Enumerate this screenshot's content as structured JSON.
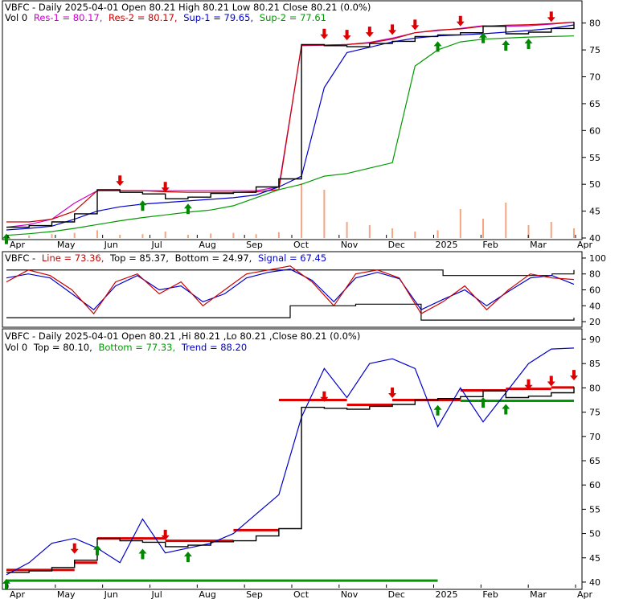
{
  "chart_data": [
    {
      "type": "line",
      "symbol": "VBFC",
      "header_line1": "VBFC - Daily 2025-04-01 Open 80.21  High 80.21  Low 80.21  Close 80.21 (0.0%)",
      "legend_vol": "Vol 0",
      "legend": [
        {
          "text": "Res-1 = 80.17,",
          "color": "#cc00cc"
        },
        {
          "text": "Res-2 = 80.17,",
          "color": "#cc0000"
        },
        {
          "text": "Sup-1 = 79.65,",
          "color": "#0000cc"
        },
        {
          "text": "Sup-2 = 77.61",
          "color": "#009900"
        }
      ],
      "y_ticks": [
        "80",
        "75",
        "70",
        "65",
        "60",
        "55",
        "50",
        "45",
        "40"
      ],
      "ylim": [
        40,
        81
      ],
      "x_ticks": [
        "Apr",
        "May",
        "Jun",
        "Jul",
        "Aug",
        "Sep",
        "Oct",
        "Nov",
        "Dec",
        "2025",
        "Feb",
        "Mar",
        "Apr"
      ],
      "x_index": [
        0,
        1,
        2,
        3,
        4,
        5,
        6,
        7,
        8,
        9,
        10,
        11,
        12,
        13,
        14,
        15,
        16,
        17,
        18,
        19,
        20,
        21,
        22,
        23,
        24,
        25
      ],
      "price": [
        42.0,
        42.3,
        43.0,
        44.5,
        49.0,
        48.5,
        48.2,
        47.3,
        47.6,
        48.3,
        48.5,
        49.5,
        51.0,
        76.0,
        75.8,
        75.6,
        76.2,
        76.6,
        77.5,
        77.8,
        78.2,
        79.4,
        78.0,
        78.3,
        79.0,
        80.21
      ],
      "series": [
        {
          "name": "Res-1",
          "color": "#cc00cc",
          "values": [
            42.0,
            42.5,
            43.5,
            46.5,
            48.8,
            48.8,
            48.8,
            48.8,
            48.8,
            48.8,
            48.8,
            48.8,
            49.5,
            75.8,
            75.9,
            76.0,
            76.4,
            77.2,
            78.2,
            78.6,
            79.0,
            79.5,
            79.4,
            79.5,
            79.8,
            80.17
          ]
        },
        {
          "name": "Res-2",
          "color": "#cc0000",
          "values": [
            43.0,
            43.0,
            43.5,
            45.0,
            48.8,
            48.8,
            48.8,
            48.6,
            48.5,
            48.5,
            48.5,
            48.6,
            49.0,
            75.9,
            75.9,
            76.0,
            76.3,
            77.0,
            78.2,
            78.7,
            78.9,
            79.4,
            79.6,
            79.7,
            79.9,
            80.17
          ]
        },
        {
          "name": "Sup-1",
          "color": "#0000cc",
          "values": [
            41.5,
            41.8,
            42.2,
            43.5,
            45.0,
            45.8,
            46.3,
            46.6,
            46.9,
            47.2,
            47.5,
            48.0,
            49.5,
            51.5,
            68.0,
            74.5,
            75.5,
            76.5,
            77.2,
            77.6,
            77.8,
            78.0,
            78.3,
            78.6,
            79.0,
            79.65
          ]
        },
        {
          "name": "Sup-2",
          "color": "#009900",
          "values": [
            40.5,
            40.8,
            41.2,
            41.8,
            42.5,
            43.2,
            43.8,
            44.3,
            44.8,
            45.2,
            46.0,
            47.5,
            49.0,
            50.0,
            51.5,
            52.0,
            53.0,
            54.0,
            72.0,
            75.0,
            76.5,
            77.0,
            77.2,
            77.4,
            77.5,
            77.61
          ]
        }
      ],
      "volume_rel": [
        0.05,
        0.04,
        0.06,
        0.08,
        0.12,
        0.05,
        0.06,
        0.1,
        0.05,
        0.07,
        0.08,
        0.06,
        0.09,
        0.85,
        0.75,
        0.25,
        0.2,
        0.15,
        0.1,
        0.12,
        0.45,
        0.3,
        0.55,
        0.2,
        0.25,
        0.15
      ],
      "up_arrows": [
        0,
        6,
        8,
        19,
        21,
        22,
        23
      ],
      "down_arrows": [
        5,
        7,
        14,
        15,
        16,
        17,
        18,
        20,
        24
      ]
    },
    {
      "type": "line",
      "header_prefix": "VBFC -",
      "legend": [
        {
          "text": "Line = 73.36,",
          "color": "#cc0000"
        },
        {
          "text": "Top = 85.37,",
          "color": "#000000"
        },
        {
          "text": "Bottom = 24.97,",
          "color": "#000000"
        },
        {
          "text": "Signal = 67.45",
          "color": "#0000cc"
        }
      ],
      "y_ticks": [
        "100",
        "80",
        "60",
        "40",
        "20"
      ],
      "ylim": [
        15,
        105
      ],
      "line": [
        70,
        85,
        78,
        60,
        30,
        70,
        80,
        55,
        70,
        40,
        60,
        80,
        85,
        90,
        70,
        40,
        80,
        85,
        75,
        30,
        45,
        65,
        35,
        60,
        80,
        75,
        73
      ],
      "signal": [
        75,
        80,
        75,
        55,
        35,
        65,
        78,
        60,
        65,
        45,
        55,
        75,
        82,
        86,
        72,
        45,
        75,
        82,
        74,
        35,
        48,
        60,
        40,
        58,
        75,
        78,
        67
      ],
      "top": [
        85,
        85,
        85,
        85,
        85,
        85,
        85,
        85,
        85,
        85,
        85,
        85,
        85,
        85,
        85,
        85,
        85,
        85,
        85,
        85,
        78,
        78,
        78,
        78,
        78,
        80,
        85
      ],
      "bottom": [
        25,
        25,
        25,
        25,
        25,
        25,
        25,
        25,
        25,
        25,
        25,
        25,
        25,
        40,
        40,
        40,
        42,
        42,
        42,
        22,
        22,
        22,
        22,
        22,
        22,
        22,
        25
      ]
    },
    {
      "type": "line",
      "header_line1": "VBFC - Daily 2025-04-01 Open 80.21 ,Hi 80.21 ,Lo 80.21 ,Close 80.21 (0.0%)",
      "legend_vol": "Vol 0",
      "legend": [
        {
          "text": "Top = 80.10,",
          "color": "#000000"
        },
        {
          "text": "Bottom = 77.33,",
          "color": "#009900"
        },
        {
          "text": "Trend = 88.20",
          "color": "#0000cc"
        }
      ],
      "y_ticks": [
        "90",
        "85",
        "80",
        "75",
        "70",
        "65",
        "60",
        "55",
        "50",
        "45",
        "40"
      ],
      "ylim": [
        39,
        91
      ],
      "price": [
        42.0,
        42.3,
        43.0,
        44.5,
        49.0,
        48.5,
        48.2,
        47.3,
        47.6,
        48.3,
        48.5,
        49.5,
        51.0,
        76.0,
        75.8,
        75.6,
        76.2,
        76.6,
        77.5,
        77.8,
        78.2,
        79.4,
        78.0,
        78.3,
        79.0,
        80.21
      ],
      "trend": [
        41.5,
        44,
        48,
        49,
        47,
        44,
        53,
        46,
        47,
        48,
        50,
        54,
        58,
        74,
        84,
        78,
        85,
        86,
        84,
        72,
        80,
        73,
        79,
        85,
        88,
        88.2
      ],
      "top_segments": [
        [
          0,
          3,
          42.5
        ],
        [
          3,
          4,
          44.0
        ],
        [
          4,
          7,
          49.0
        ],
        [
          7,
          10,
          48.5
        ],
        [
          10,
          12,
          50.7
        ],
        [
          12,
          15,
          77.5
        ],
        [
          15,
          17,
          76.5
        ],
        [
          17,
          20,
          77.5
        ],
        [
          20,
          22,
          79.5
        ],
        [
          22,
          24,
          79.8
        ],
        [
          24,
          25,
          80.1
        ]
      ],
      "bottom_segments": [
        [
          0,
          19,
          40.3
        ],
        [
          20,
          25,
          77.33
        ]
      ],
      "up_arrows": [
        0,
        4,
        6,
        8,
        19,
        21,
        22
      ],
      "down_arrows": [
        3,
        7,
        14,
        17,
        23,
        24,
        25
      ]
    }
  ]
}
